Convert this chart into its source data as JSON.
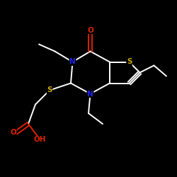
{
  "background_color": "#000000",
  "atom_colors": {
    "N": "#2222ee",
    "S": "#ccaa00",
    "O": "#dd2200",
    "C": "#ffffff",
    "H": "#ffffff"
  },
  "bond_color": "#ffffff",
  "figsize": [
    2.5,
    2.5
  ],
  "dpi": 100
}
